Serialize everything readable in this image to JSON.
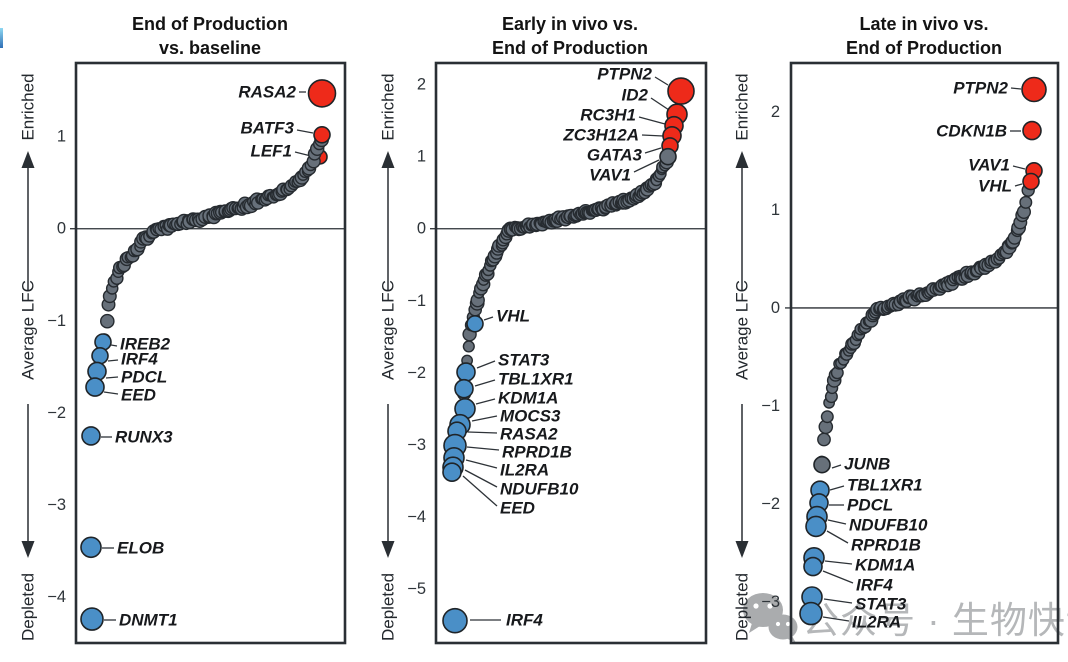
{
  "colors": {
    "red": "#ee2a1a",
    "blue": "#4a8fc7",
    "gray": "#67707a",
    "outline": "#1f2428",
    "axis": "#2a2f34",
    "watermark_gray": "#b5b7b9"
  },
  "axis": {
    "ylabel": "Average LFC",
    "top_label": "Enriched",
    "bottom_label": "Depleted"
  },
  "watermark": {
    "icon": "wechat-icon",
    "text": "公众号 · 生物快评"
  },
  "chart_data": [
    {
      "type": "scatter",
      "title_line1": "End of Production",
      "title_line2": "vs. baseline",
      "ylabel": "Average LFC",
      "ylim": [
        -4.5,
        1.8
      ],
      "yticks": [
        1,
        0,
        -1,
        -2,
        -3,
        -4
      ],
      "labeled_points": [
        {
          "gene": "LEF1",
          "lfc": 0.78,
          "color": "red",
          "r": 7,
          "behind": true
        },
        {
          "gene": "BATF3",
          "lfc": 1.02,
          "color": "red",
          "r": 8
        },
        {
          "gene": "RASA2",
          "lfc": 1.47,
          "color": "red",
          "r": 13.5
        },
        {
          "gene": "IREB2",
          "lfc": -1.23,
          "color": "blue",
          "r": 8
        },
        {
          "gene": "IRF4",
          "lfc": -1.38,
          "color": "blue",
          "r": 8
        },
        {
          "gene": "PDCL",
          "lfc": -1.55,
          "color": "blue",
          "r": 9
        },
        {
          "gene": "EED",
          "lfc": -1.72,
          "color": "blue",
          "r": 9
        },
        {
          "gene": "RUNX3",
          "lfc": -2.25,
          "color": "blue",
          "r": 9
        },
        {
          "gene": "ELOB",
          "lfc": -3.46,
          "color": "blue",
          "r": 10
        },
        {
          "gene": "DNMT1",
          "lfc": -4.24,
          "color": "blue",
          "r": 11
        }
      ],
      "background": {
        "n": 112,
        "lfc_min": -1.18,
        "lfc_max": 0.97,
        "cross": 0.244,
        "tail_neg": 10,
        "tail_pos": 12
      }
    },
    {
      "type": "scatter",
      "title_line1": "Early in vivo vs.",
      "title_line2": "End of Production",
      "ylabel": "Average LFC",
      "ylim": [
        -5.75,
        2.3
      ],
      "yticks": [
        2,
        1,
        0,
        -1,
        -2,
        -3,
        -4,
        -5
      ],
      "labeled_points": [
        {
          "gene": "PTPN2",
          "lfc": 1.91,
          "color": "red",
          "r": 13
        },
        {
          "gene": "ID2",
          "lfc": 1.59,
          "color": "red",
          "r": 10
        },
        {
          "gene": "RC3H1",
          "lfc": 1.43,
          "color": "red",
          "r": 9
        },
        {
          "gene": "ZC3H12A",
          "lfc": 1.29,
          "color": "red",
          "r": 9
        },
        {
          "gene": "GATA3",
          "lfc": 1.15,
          "color": "red",
          "r": 8
        },
        {
          "gene": "VAV1",
          "lfc": 1.0,
          "color": "gray",
          "r": 8
        },
        {
          "gene": "VHL",
          "lfc": -1.32,
          "color": "blue",
          "r": 8
        },
        {
          "gene": "STAT3",
          "lfc": -1.99,
          "color": "blue",
          "r": 9
        },
        {
          "gene": "TBL1XR1",
          "lfc": -2.22,
          "color": "blue",
          "r": 9
        },
        {
          "gene": "KDM1A",
          "lfc": -2.5,
          "color": "blue",
          "r": 10
        },
        {
          "gene": "MOCS3",
          "lfc": -2.72,
          "color": "blue",
          "r": 10
        },
        {
          "gene": "RASA2",
          "lfc": -2.81,
          "color": "blue",
          "r": 9
        },
        {
          "gene": "RPRD1B",
          "lfc": -3.01,
          "color": "blue",
          "r": 11
        },
        {
          "gene": "IL2RA",
          "lfc": -3.18,
          "color": "blue",
          "r": 10
        },
        {
          "gene": "NDUFB10",
          "lfc": -3.31,
          "color": "blue",
          "r": 10
        },
        {
          "gene": "EED",
          "lfc": -3.38,
          "color": "blue",
          "r": 9
        },
        {
          "gene": "IRF4",
          "lfc": -5.44,
          "color": "blue",
          "r": 12
        }
      ],
      "background": {
        "n": 135,
        "lfc_min": -2.55,
        "lfc_max": 1.0,
        "cross": 0.236,
        "tail_neg": 7,
        "tail_pos": 12
      }
    },
    {
      "type": "scatter",
      "title_line1": "Late in vivo vs.",
      "title_line2": "End of Production",
      "ylabel": "Average LFC",
      "ylim": [
        -3.42,
        2.5
      ],
      "yticks": [
        2,
        1,
        0,
        -1,
        -2,
        -3
      ],
      "labeled_points": [
        {
          "gene": "PTPN2",
          "lfc": 2.23,
          "color": "red",
          "r": 12
        },
        {
          "gene": "CDKN1B",
          "lfc": 1.81,
          "color": "red",
          "r": 9
        },
        {
          "gene": "VAV1",
          "lfc": 1.4,
          "color": "red",
          "r": 8
        },
        {
          "gene": "VHL",
          "lfc": 1.29,
          "color": "red",
          "r": 8
        },
        {
          "gene": "JUNB",
          "lfc": -1.6,
          "color": "gray",
          "r": 8
        },
        {
          "gene": "TBL1XR1",
          "lfc": -1.86,
          "color": "blue",
          "r": 9
        },
        {
          "gene": "PDCL",
          "lfc": -1.99,
          "color": "blue",
          "r": 9
        },
        {
          "gene": "NDUFB10",
          "lfc": -2.13,
          "color": "blue",
          "r": 10
        },
        {
          "gene": "RPRD1B",
          "lfc": -2.23,
          "color": "blue",
          "r": 10
        },
        {
          "gene": "KDM1A",
          "lfc": -2.55,
          "color": "blue",
          "r": 10
        },
        {
          "gene": "IRF4",
          "lfc": -2.64,
          "color": "blue",
          "r": 9
        },
        {
          "gene": "STAT3",
          "lfc": -2.95,
          "color": "blue",
          "r": 10
        },
        {
          "gene": "IL2RA",
          "lfc": -3.12,
          "color": "blue",
          "r": 11
        }
      ],
      "background": {
        "n": 115,
        "lfc_min": -1.55,
        "lfc_max": 1.18,
        "cross": 0.292,
        "tail_neg": 8,
        "tail_pos": 14
      }
    }
  ]
}
